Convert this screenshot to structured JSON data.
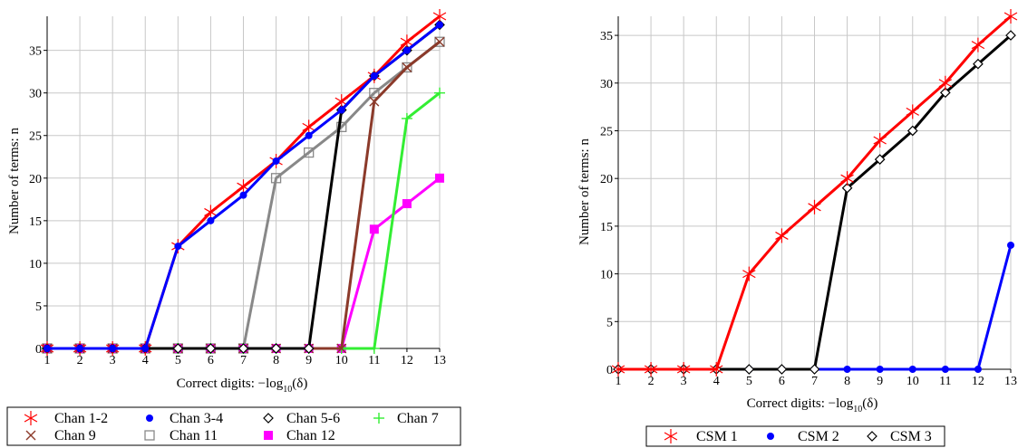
{
  "chart_data": [
    {
      "type": "line",
      "xlabel_prefix": "Correct digits: −log",
      "xlabel_sub": "10",
      "xlabel_suffix": "(δ)",
      "ylabel": "Number of terms: n",
      "x": [
        1,
        2,
        3,
        4,
        5,
        6,
        7,
        8,
        9,
        10,
        11,
        12,
        13
      ],
      "xlim": [
        1,
        13
      ],
      "ylim": [
        0,
        39
      ],
      "yticks": [
        0,
        5,
        10,
        15,
        20,
        25,
        30,
        35
      ],
      "grid": true,
      "legend_position": "bottom",
      "series": [
        {
          "name": "Chan 1-2",
          "color": "#ff0000",
          "marker": "asterisk",
          "values": [
            0,
            0,
            0,
            0,
            12,
            16,
            19,
            22,
            26,
            29,
            32,
            36,
            39
          ]
        },
        {
          "name": "Chan 3-4",
          "color": "#0000ff",
          "marker": "dot",
          "values": [
            0,
            0,
            0,
            0,
            12,
            15,
            18,
            22,
            25,
            28,
            32,
            35,
            38
          ]
        },
        {
          "name": "Chan 5-6",
          "color": "#000000",
          "marker": "diamond",
          "values": [
            0,
            0,
            0,
            0,
            0,
            0,
            0,
            0,
            0,
            28,
            32,
            35,
            38
          ]
        },
        {
          "name": "Chan 7",
          "color": "#33ee33",
          "marker": "plus",
          "values": [
            0,
            0,
            0,
            0,
            0,
            0,
            0,
            0,
            0,
            0,
            0,
            27,
            30
          ]
        },
        {
          "name": "Chan 9",
          "color": "#8b3a2a",
          "marker": "cross",
          "values": [
            0,
            0,
            0,
            0,
            0,
            0,
            0,
            0,
            0,
            0,
            29,
            33,
            36
          ]
        },
        {
          "name": "Chan 11",
          "color": "#888888",
          "marker": "square-open",
          "values": [
            0,
            0,
            0,
            0,
            0,
            0,
            0,
            20,
            23,
            26,
            30,
            33,
            36
          ]
        },
        {
          "name": "Chan 12",
          "color": "#ff00ff",
          "marker": "square-filled",
          "values": [
            0,
            0,
            0,
            0,
            0,
            0,
            0,
            0,
            0,
            0,
            14,
            17,
            20
          ]
        }
      ]
    },
    {
      "type": "line",
      "xlabel_prefix": "Correct digits: −log",
      "xlabel_sub": "10",
      "xlabel_suffix": "(δ)",
      "ylabel": "Number of terms: n",
      "x": [
        1,
        2,
        3,
        4,
        5,
        6,
        7,
        8,
        9,
        10,
        11,
        12,
        13
      ],
      "xlim": [
        1,
        13
      ],
      "ylim": [
        0,
        37
      ],
      "yticks": [
        0,
        5,
        10,
        15,
        20,
        25,
        30,
        35
      ],
      "grid": true,
      "legend_position": "bottom",
      "series": [
        {
          "name": "CSM 1",
          "color": "#ff0000",
          "marker": "asterisk",
          "values": [
            0,
            0,
            0,
            0,
            10,
            14,
            17,
            20,
            24,
            27,
            30,
            34,
            37
          ]
        },
        {
          "name": "CSM 2",
          "color": "#0000ff",
          "marker": "dot",
          "values": [
            0,
            0,
            0,
            0,
            0,
            0,
            0,
            0,
            0,
            0,
            0,
            0,
            13
          ]
        },
        {
          "name": "CSM 3",
          "color": "#000000",
          "marker": "diamond",
          "values": [
            0,
            0,
            0,
            0,
            0,
            0,
            0,
            19,
            22,
            25,
            29,
            32,
            35
          ]
        }
      ]
    }
  ]
}
